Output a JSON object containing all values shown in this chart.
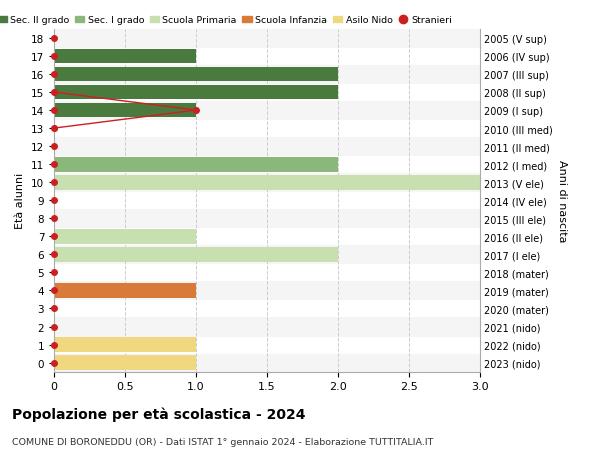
{
  "title": "Popolazione per età scolastica - 2024",
  "subtitle": "COMUNE DI BORONEDDU (OR) - Dati ISTAT 1° gennaio 2024 - Elaborazione TUTTITALIA.IT",
  "ylabel_left": "Età alunni",
  "ylabel_right": "Anni di nascita",
  "xlim": [
    0,
    3.0
  ],
  "ylim": [
    -0.5,
    18.5
  ],
  "yticks": [
    0,
    1,
    2,
    3,
    4,
    5,
    6,
    7,
    8,
    9,
    10,
    11,
    12,
    13,
    14,
    15,
    16,
    17,
    18
  ],
  "right_labels": [
    "2023 (nido)",
    "2022 (nido)",
    "2021 (nido)",
    "2020 (mater)",
    "2019 (mater)",
    "2018 (mater)",
    "2017 (I ele)",
    "2016 (II ele)",
    "2015 (III ele)",
    "2014 (IV ele)",
    "2013 (V ele)",
    "2012 (I med)",
    "2011 (II med)",
    "2010 (III med)",
    "2009 (I sup)",
    "2008 (II sup)",
    "2007 (III sup)",
    "2006 (IV sup)",
    "2005 (V sup)"
  ],
  "xticks": [
    0,
    0.5,
    1.0,
    1.5,
    2.0,
    2.5,
    3.0
  ],
  "xtick_labels": [
    "0",
    "0.5",
    "1.0",
    "1.5",
    "2.0",
    "2.5",
    "3.0"
  ],
  "colors": {
    "sec2": "#4a7a3e",
    "sec1": "#8ab87a",
    "primaria": "#c8e0b0",
    "infanzia": "#d97a38",
    "nido": "#f0d880",
    "stranieri": "#cc2020"
  },
  "bars": [
    {
      "y": 17,
      "value": 1.0,
      "color": "sec2"
    },
    {
      "y": 16,
      "value": 2.0,
      "color": "sec2"
    },
    {
      "y": 15,
      "value": 2.0,
      "color": "sec2"
    },
    {
      "y": 14,
      "value": 1.0,
      "color": "sec2"
    },
    {
      "y": 11,
      "value": 2.0,
      "color": "sec1"
    },
    {
      "y": 10,
      "value": 3.0,
      "color": "primaria"
    },
    {
      "y": 7,
      "value": 1.0,
      "color": "primaria"
    },
    {
      "y": 6,
      "value": 2.0,
      "color": "primaria"
    },
    {
      "y": 4,
      "value": 1.0,
      "color": "infanzia"
    },
    {
      "y": 1,
      "value": 1.0,
      "color": "nido"
    },
    {
      "y": 0,
      "value": 1.0,
      "color": "nido"
    }
  ],
  "stranieri_dots_y": [
    0,
    1,
    2,
    3,
    4,
    5,
    6,
    7,
    8,
    9,
    10,
    11,
    12,
    13,
    14,
    15,
    16,
    17,
    18
  ],
  "stranieri_line_x": [
    0.0,
    1.0,
    0.0
  ],
  "stranieri_line_y": [
    15,
    14,
    13
  ],
  "bar_height": 0.82,
  "background_color": "#ffffff",
  "grid_color": "#cccccc",
  "legend_items": [
    {
      "label": "Sec. II grado",
      "color": "sec2",
      "type": "patch"
    },
    {
      "label": "Sec. I grado",
      "color": "sec1",
      "type": "patch"
    },
    {
      "label": "Scuola Primaria",
      "color": "primaria",
      "type": "patch"
    },
    {
      "label": "Scuola Infanzia",
      "color": "infanzia",
      "type": "patch"
    },
    {
      "label": "Asilo Nido",
      "color": "nido",
      "type": "patch"
    },
    {
      "label": "Stranieri",
      "color": "stranieri",
      "type": "dot"
    }
  ]
}
